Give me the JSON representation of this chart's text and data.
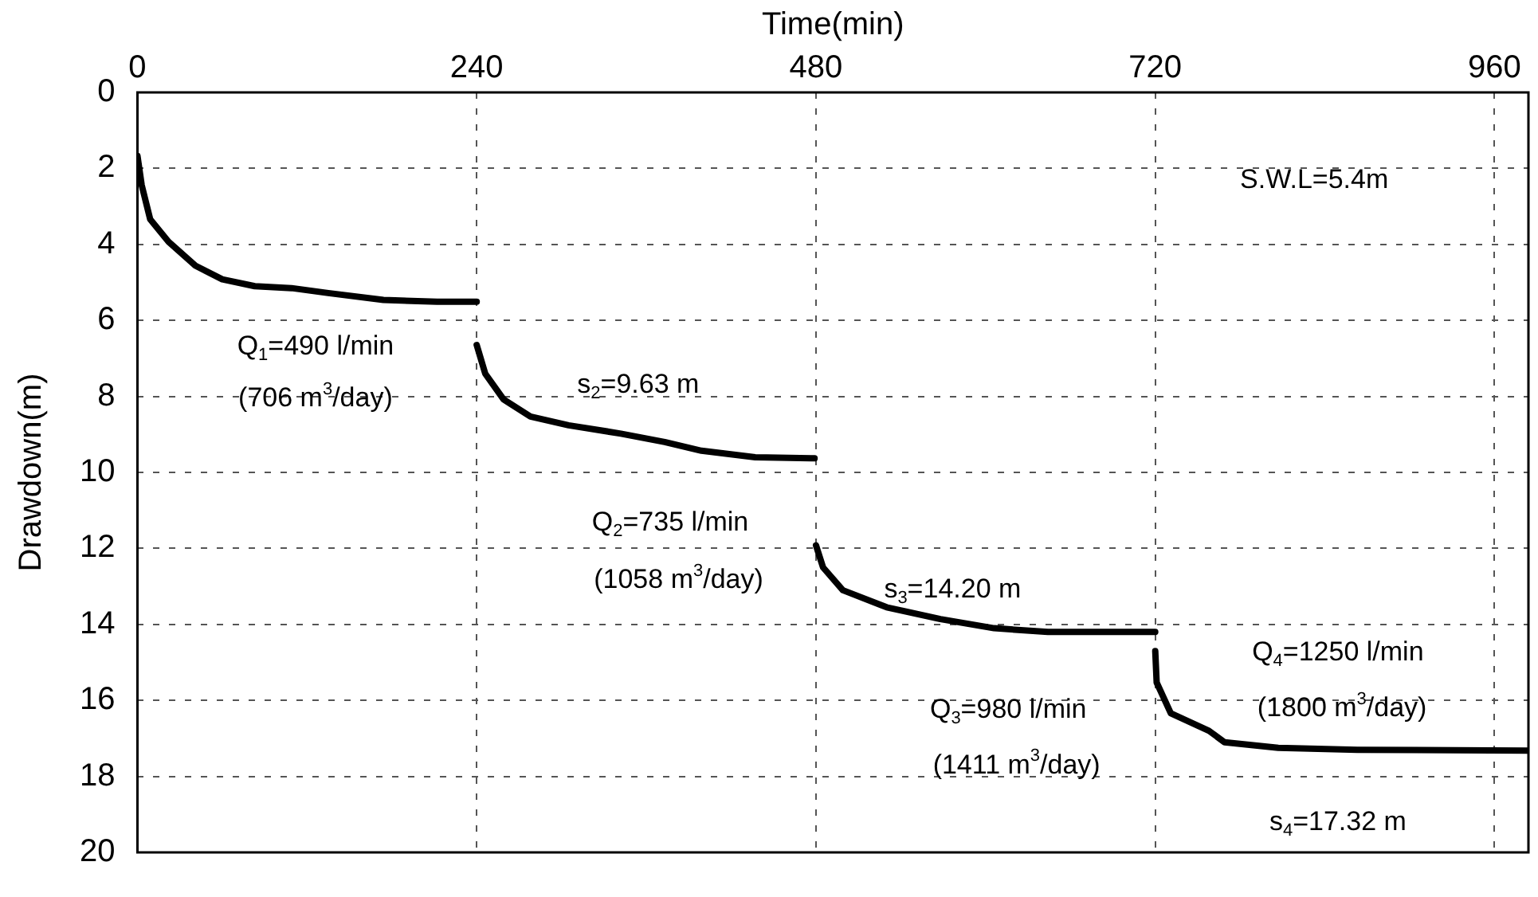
{
  "chart_data": {
    "type": "line",
    "xlabel": "Time(min)",
    "ylabel": "Drawdown(m)",
    "xlim": [
      0,
      984
    ],
    "xticks": [
      0,
      240,
      480,
      720,
      960
    ],
    "ylim": [
      20,
      0
    ],
    "yticks": [
      0,
      2,
      4,
      6,
      8,
      10,
      12,
      14,
      16,
      18,
      20
    ],
    "grid": true,
    "legend": false,
    "marker": "none",
    "line_style": "solid",
    "series": [
      {
        "color": "#000000",
        "x": [
          0,
          3,
          9,
          22,
          41,
          60,
          83,
          109,
          135,
          174,
          212,
          240
        ],
        "values": [
          1.67,
          2.44,
          3.34,
          3.93,
          4.56,
          4.92,
          5.1,
          5.15,
          5.28,
          5.46,
          5.51,
          5.51
        ]
      },
      {
        "color": "#000000",
        "x": [
          240,
          246,
          259,
          278,
          305,
          342,
          373,
          399,
          437,
          479
        ],
        "values": [
          6.65,
          7.4,
          8.08,
          8.53,
          8.76,
          8.98,
          9.2,
          9.43,
          9.6,
          9.63
        ]
      },
      {
        "color": "#000000",
        "x": [
          480,
          485,
          499,
          530,
          568,
          606,
          644,
          720
        ],
        "values": [
          11.92,
          12.5,
          13.1,
          13.55,
          13.86,
          14.1,
          14.2,
          14.2
        ]
      },
      {
        "color": "#000000",
        "x": [
          720,
          721,
          731,
          758,
          769,
          807,
          863,
          984
        ],
        "values": [
          14.7,
          15.53,
          16.34,
          16.8,
          17.1,
          17.25,
          17.3,
          17.32
        ]
      }
    ],
    "annotations": [
      "S.W.L=5.4m",
      "Q$_{1}$=490 l/min",
      "(706 m$^{3}$/day)",
      "s$_{2}$=9.63 m",
      "Q$_{2}$=735 l/min",
      "(1058 m$^{3}$/day)",
      "s$_{3}$=14.20 m",
      "Q$_{3}$=980 l/min",
      "(1411 m$^{3}$/day)",
      "Q$_{4}$=1250 l/min",
      "(1800 m$^{3}$/day)",
      "s$_{4}$=17.32 m"
    ]
  }
}
